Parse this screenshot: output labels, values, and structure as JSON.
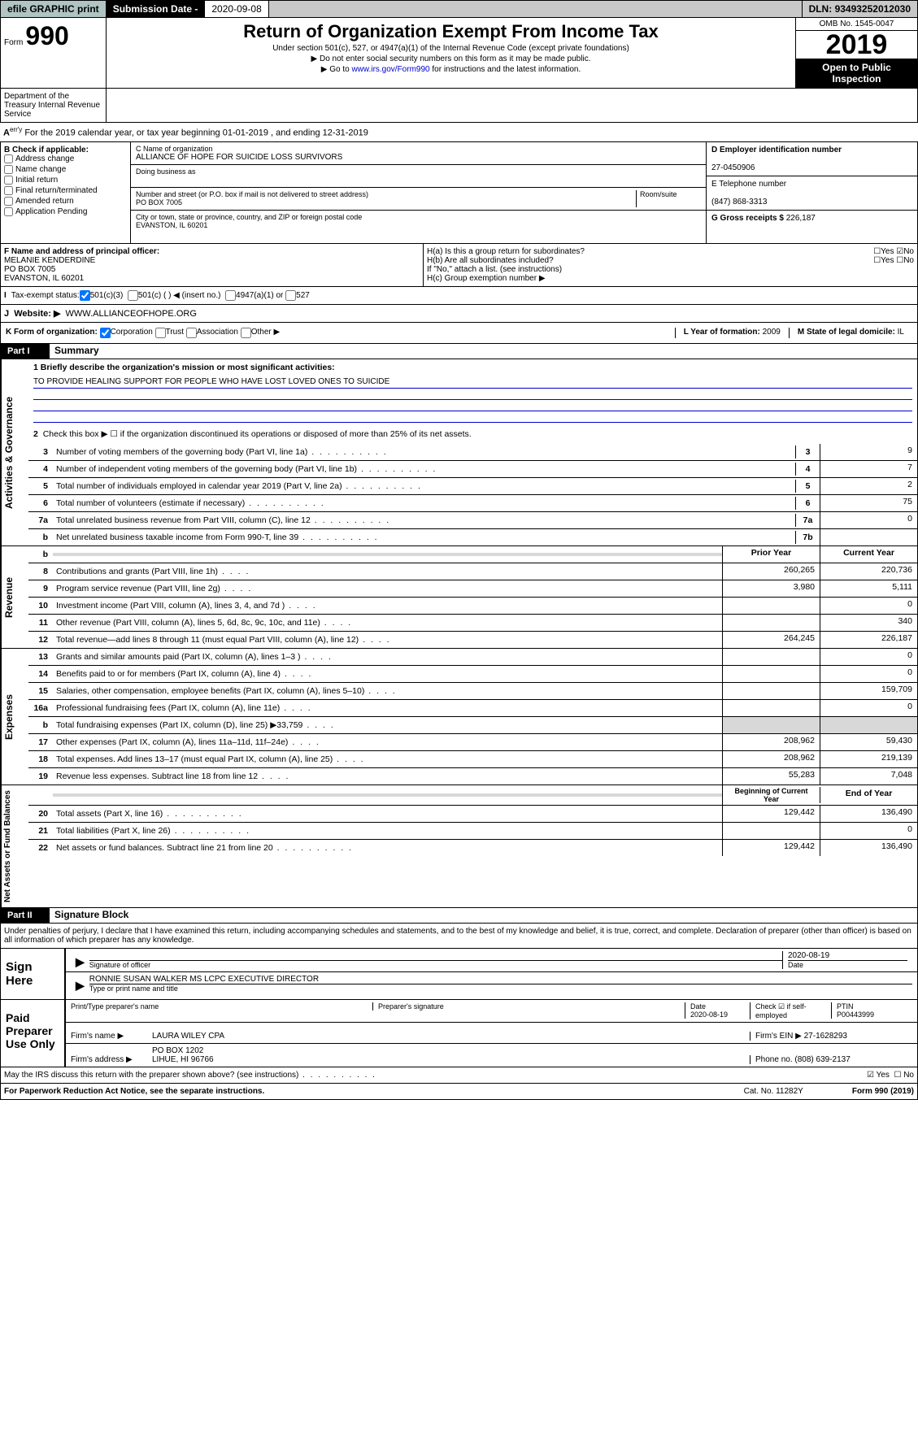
{
  "topbar": {
    "efile": "efile GRAPHIC print",
    "sub_label": "Submission Date - ",
    "sub_date": "2020-09-08",
    "dln_label": "DLN: ",
    "dln": "93493252012030"
  },
  "header": {
    "form_label": "Form",
    "form_num": "990",
    "dept": "Department of the Treasury Internal Revenue Service",
    "title": "Return of Organization Exempt From Income Tax",
    "sub1": "Under section 501(c), 527, or 4947(a)(1) of the Internal Revenue Code (except private foundations)",
    "sub2": "▶ Do not enter social security numbers on this form as it may be made public.",
    "sub3": "▶ Go to www.irs.gov/Form990 for instructions and the latest information.",
    "omb": "OMB No. 1545-0047",
    "year": "2019",
    "inspect1": "Open to Public",
    "inspect2": "Inspection"
  },
  "section_a": "For the 2019 calendar year, or tax year beginning 01-01-2019     , and ending 12-31-2019",
  "box_b": {
    "title": "B Check if applicable:",
    "items": [
      "Address change",
      "Name change",
      "Initial return",
      "Final return/terminated",
      "Amended return",
      "Application Pending"
    ]
  },
  "box_c": {
    "name_label": "C Name of organization",
    "name": "ALLIANCE OF HOPE FOR SUICIDE LOSS SURVIVORS",
    "dba_label": "Doing business as",
    "addr_label": "Number and street (or P.O. box if mail is not delivered to street address)",
    "room_label": "Room/suite",
    "addr": "PO BOX 7005",
    "city_label": "City or town, state or province, country, and ZIP or foreign postal code",
    "city": "EVANSTON, IL  60201"
  },
  "box_d": {
    "label": "D Employer identification number",
    "value": "27-0450906"
  },
  "box_e": {
    "label": "E Telephone number",
    "value": "(847) 868-3313"
  },
  "box_g": {
    "label": "G Gross receipts $",
    "value": "226,187"
  },
  "box_f": {
    "label": "F  Name and address of principal officer:",
    "name": "MELANIE KENDERDINE",
    "addr1": "PO BOX 7005",
    "addr2": "EVANSTON, IL  60201"
  },
  "box_h": {
    "ha": "H(a)  Is this a group return for subordinates?",
    "hb": "H(b)  Are all subordinates included?",
    "hb_note": "If \"No,\" attach a list. (see instructions)",
    "hc": "H(c)  Group exemption number ▶"
  },
  "box_i": {
    "label": "Tax-exempt status:",
    "opts": [
      "501(c)(3)",
      "501(c) (  ) ◀ (insert no.)",
      "4947(a)(1) or",
      "527"
    ]
  },
  "box_j": {
    "label": "Website: ▶",
    "value": "WWW.ALLIANCEOFHOPE.ORG"
  },
  "box_k": {
    "label": "K Form of organization:",
    "opts": [
      "Corporation",
      "Trust",
      "Association",
      "Other ▶"
    ],
    "l_label": "L Year of formation:",
    "l_val": "2009",
    "m_label": "M State of legal domicile:",
    "m_val": "IL"
  },
  "part1": {
    "num": "Part I",
    "title": "Summary"
  },
  "summary": {
    "section_governance": "Activities & Governance",
    "q1_label": "1  Briefly describe the organization's mission or most significant activities:",
    "q1_text": "TO PROVIDE HEALING SUPPORT FOR PEOPLE WHO HAVE LOST LOVED ONES TO SUICIDE",
    "q2": "Check this box ▶ ☐  if the organization discontinued its operations or disposed of more than 25% of its net assets.",
    "lines_gov": [
      {
        "n": "3",
        "t": "Number of voting members of the governing body (Part VI, line 1a)",
        "box": "3",
        "v": "9"
      },
      {
        "n": "4",
        "t": "Number of independent voting members of the governing body (Part VI, line 1b)",
        "box": "4",
        "v": "7"
      },
      {
        "n": "5",
        "t": "Total number of individuals employed in calendar year 2019 (Part V, line 2a)",
        "box": "5",
        "v": "2"
      },
      {
        "n": "6",
        "t": "Total number of volunteers (estimate if necessary)",
        "box": "6",
        "v": "75"
      },
      {
        "n": "7a",
        "t": "Total unrelated business revenue from Part VIII, column (C), line 12",
        "box": "7a",
        "v": "0"
      },
      {
        "n": "b",
        "t": "Net unrelated business taxable income from Form 990-T, line 39",
        "box": "7b",
        "v": ""
      }
    ],
    "section_revenue": "Revenue",
    "col_prior": "Prior Year",
    "col_current": "Current Year",
    "lines_rev": [
      {
        "n": "8",
        "t": "Contributions and grants (Part VIII, line 1h)",
        "p": "260,265",
        "c": "220,736"
      },
      {
        "n": "9",
        "t": "Program service revenue (Part VIII, line 2g)",
        "p": "3,980",
        "c": "5,111"
      },
      {
        "n": "10",
        "t": "Investment income (Part VIII, column (A), lines 3, 4, and 7d )",
        "p": "",
        "c": "0"
      },
      {
        "n": "11",
        "t": "Other revenue (Part VIII, column (A), lines 5, 6d, 8c, 9c, 10c, and 11e)",
        "p": "",
        "c": "340"
      },
      {
        "n": "12",
        "t": "Total revenue—add lines 8 through 11 (must equal Part VIII, column (A), line 12)",
        "p": "264,245",
        "c": "226,187"
      }
    ],
    "section_expenses": "Expenses",
    "lines_exp": [
      {
        "n": "13",
        "t": "Grants and similar amounts paid (Part IX, column (A), lines 1–3 )",
        "p": "",
        "c": "0"
      },
      {
        "n": "14",
        "t": "Benefits paid to or for members (Part IX, column (A), line 4)",
        "p": "",
        "c": "0"
      },
      {
        "n": "15",
        "t": "Salaries, other compensation, employee benefits (Part IX, column (A), lines 5–10)",
        "p": "",
        "c": "159,709"
      },
      {
        "n": "16a",
        "t": "Professional fundraising fees (Part IX, column (A), line 11e)",
        "p": "",
        "c": "0"
      },
      {
        "n": "b",
        "t": "Total fundraising expenses (Part IX, column (D), line 25) ▶33,759",
        "p": "__shade__",
        "c": "__shade__"
      },
      {
        "n": "17",
        "t": "Other expenses (Part IX, column (A), lines 11a–11d, 11f–24e)",
        "p": "208,962",
        "c": "59,430"
      },
      {
        "n": "18",
        "t": "Total expenses. Add lines 13–17 (must equal Part IX, column (A), line 25)",
        "p": "208,962",
        "c": "219,139"
      },
      {
        "n": "19",
        "t": "Revenue less expenses. Subtract line 18 from line 12",
        "p": "55,283",
        "c": "7,048"
      }
    ],
    "section_net": "Net Assets or Fund Balances",
    "col_begin": "Beginning of Current Year",
    "col_end": "End of Year",
    "lines_net": [
      {
        "n": "20",
        "t": "Total assets (Part X, line 16)",
        "p": "129,442",
        "c": "136,490"
      },
      {
        "n": "21",
        "t": "Total liabilities (Part X, line 26)",
        "p": "",
        "c": "0"
      },
      {
        "n": "22",
        "t": "Net assets or fund balances. Subtract line 21 from line 20",
        "p": "129,442",
        "c": "136,490"
      }
    ]
  },
  "part2": {
    "num": "Part II",
    "title": "Signature Block"
  },
  "penalty": "Under penalties of perjury, I declare that I have examined this return, including accompanying schedules and statements, and to the best of my knowledge and belief, it is true, correct, and complete. Declaration of preparer (other than officer) is based on all information of which preparer has any knowledge.",
  "sign": {
    "left": "Sign Here",
    "sig_label": "Signature of officer",
    "date": "2020-08-19",
    "date_label": "Date",
    "name": "RONNIE SUSAN WALKER MS LCPC  EXECUTIVE DIRECTOR",
    "name_label": "Type or print name and title"
  },
  "preparer": {
    "left": "Paid Preparer Use Only",
    "h_name": "Print/Type preparer's name",
    "h_sig": "Preparer's signature",
    "h_date": "Date",
    "date": "2020-08-19",
    "h_check": "Check ☑ if self-employed",
    "h_ptin": "PTIN",
    "ptin": "P00443999",
    "firm_name_label": "Firm's name      ▶",
    "firm_name": "LAURA WILEY CPA",
    "firm_ein_label": "Firm's EIN ▶",
    "firm_ein": "27-1628293",
    "firm_addr_label": "Firm's address ▶",
    "firm_addr1": "PO BOX 1202",
    "firm_addr2": "LIHUE, HI  96766",
    "phone_label": "Phone no.",
    "phone": "(808) 639-2137"
  },
  "discuss": "May the IRS discuss this return with the preparer shown above? (see instructions)",
  "footer": {
    "pra": "For Paperwork Reduction Act Notice, see the separate instructions.",
    "cat": "Cat. No. 11282Y",
    "form": "Form 990 (2019)"
  }
}
